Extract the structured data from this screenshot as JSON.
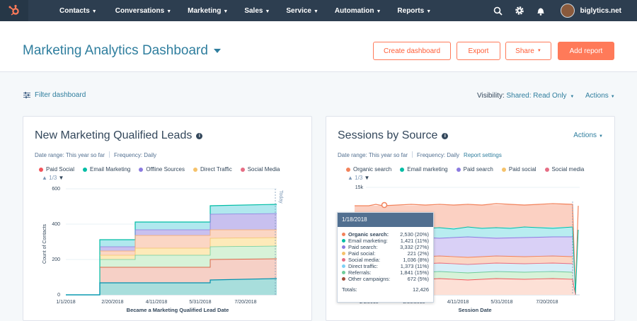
{
  "nav": {
    "items": [
      {
        "label": "Contacts"
      },
      {
        "label": "Conversations"
      },
      {
        "label": "Marketing"
      },
      {
        "label": "Sales"
      },
      {
        "label": "Service"
      },
      {
        "label": "Automation"
      },
      {
        "label": "Reports"
      }
    ],
    "account": "biglytics.net"
  },
  "header": {
    "title": "Marketing Analytics Dashboard",
    "buttons": {
      "create": "Create dashboard",
      "export": "Export",
      "share": "Share",
      "add_report": "Add report"
    }
  },
  "filterbar": {
    "filter_label": "Filter dashboard",
    "visibility_label": "Visibility:",
    "visibility_value": "Shared: Read Only",
    "actions": "Actions"
  },
  "colors": {
    "accent": "#ff7a59",
    "link": "#2f7e9e",
    "nav_bg": "#2d3e50"
  },
  "card1": {
    "title": "New Marketing Qualified Leads",
    "date_range": "Date range: This year so far",
    "frequency": "Frequency: Daily",
    "legend": [
      {
        "label": "Paid Social",
        "color": "#f2545b"
      },
      {
        "label": "Email Marketing",
        "color": "#00bda5"
      },
      {
        "label": "Offline Sources",
        "color": "#8b7be0"
      },
      {
        "label": "Direct Traffic",
        "color": "#f5c26b"
      },
      {
        "label": "Social Media",
        "color": "#e66e84"
      }
    ],
    "pager": "1/3",
    "today_label": "Today"
  },
  "card2": {
    "title": "Sessions by Source",
    "date_range": "Date range: This year so far",
    "frequency": "Frequency: Daily",
    "report_settings": "Report settings",
    "actions": "Actions",
    "legend": [
      {
        "label": "Organic search",
        "color": "#f2825b"
      },
      {
        "label": "Email marketing",
        "color": "#00bda5"
      },
      {
        "label": "Paid search",
        "color": "#8b7be0"
      },
      {
        "label": "Paid social",
        "color": "#f5c26b"
      },
      {
        "label": "Social media",
        "color": "#e66e84"
      }
    ],
    "pager": "1/3"
  },
  "tooltip": {
    "date": "1/18/2018",
    "rows": [
      {
        "name": "Organic search:",
        "value": "2,530 (20%)",
        "color": "#f2825b",
        "bold": true
      },
      {
        "name": "Email marketing:",
        "value": "1,421 (11%)",
        "color": "#00bda5"
      },
      {
        "name": "Paid search:",
        "value": "3,332 (27%)",
        "color": "#8b7be0"
      },
      {
        "name": "Paid social:",
        "value": "221 (2%)",
        "color": "#f5c26b"
      },
      {
        "name": "Social media:",
        "value": "1,036 (8%)",
        "color": "#e66e84"
      },
      {
        "name": "Direct traffic:",
        "value": "1,373 (11%)",
        "color": "#7fd1f5"
      },
      {
        "name": "Referrals:",
        "value": "1,841 (15%)",
        "color": "#6fcc9a"
      },
      {
        "name": "Other campaigns:",
        "value": "672 (5%)",
        "color": "#a24d3a"
      }
    ],
    "total_label": "Totals:",
    "total_value": "12,426"
  },
  "chart_data": [
    {
      "type": "area",
      "title": "New Marketing Qualified Leads",
      "xlabel": "Became a Marketing Qualified Lead Date",
      "ylabel": "Count of Contacts",
      "ylim": [
        0,
        600
      ],
      "yticks": [
        "0",
        "200",
        "400",
        "600"
      ],
      "xticks": [
        "1/1/2018",
        "2/20/2018",
        "4/11/2018",
        "5/31/2018",
        "7/20/2018"
      ],
      "stacked": true,
      "series": [
        {
          "name": "Paid Social",
          "color": "#f2545b",
          "steps": [
            [
              0,
              0
            ],
            [
              48,
              70
            ],
            [
              200,
              80
            ]
          ]
        },
        {
          "name": "Email Marketing",
          "color": "#00bda5"
        },
        {
          "name": "Offline Sources",
          "color": "#8b7be0"
        },
        {
          "name": "Direct Traffic",
          "color": "#f5c26b"
        },
        {
          "name": "Social Media",
          "color": "#e66e84"
        }
      ],
      "totals_by_step": [
        {
          "x": "1/1/2018",
          "total": 0
        },
        {
          "x": "2/7/2018",
          "total": 300
        },
        {
          "x": "3/24/2018",
          "total": 400
        },
        {
          "x": "5/27/2018",
          "total": 490
        },
        {
          "x": "8/15/2018",
          "total": 500
        }
      ]
    },
    {
      "type": "area",
      "title": "Sessions by Source",
      "xlabel": "Session Date",
      "ylabel": "",
      "yticks": [
        "15k"
      ],
      "xticks": [
        "1/1/2018",
        "2/20/2018",
        "4/11/2018",
        "5/31/2018",
        "7/20/2018"
      ],
      "stacked": true,
      "series": [
        {
          "name": "Organic search",
          "color": "#f2825b"
        },
        {
          "name": "Email marketing",
          "color": "#00bda5"
        },
        {
          "name": "Paid search",
          "color": "#8b7be0"
        },
        {
          "name": "Paid social",
          "color": "#f5c26b"
        },
        {
          "name": "Social media",
          "color": "#e66e84"
        }
      ]
    }
  ]
}
